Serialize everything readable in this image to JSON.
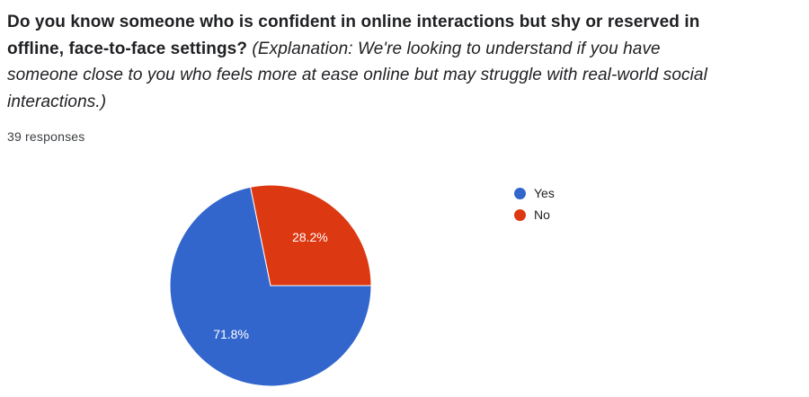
{
  "question": {
    "bold_text": "Do you know someone who is confident in online interactions but shy or reserved in offline, face-to-face settings?",
    "explanation_text": "(Explanation: We're looking to understand if you have someone close to you who feels more at ease online but may struggle with real-world social interactions.)"
  },
  "responses_label": "39 responses",
  "chart_data": {
    "type": "pie",
    "labels": [
      "Yes",
      "No"
    ],
    "values": [
      71.8,
      28.2
    ],
    "value_labels": [
      "71.8%",
      "28.2%"
    ],
    "colors": [
      "#3366cc",
      "#dc3912"
    ],
    "legend_position": "right",
    "total_responses": 39
  }
}
